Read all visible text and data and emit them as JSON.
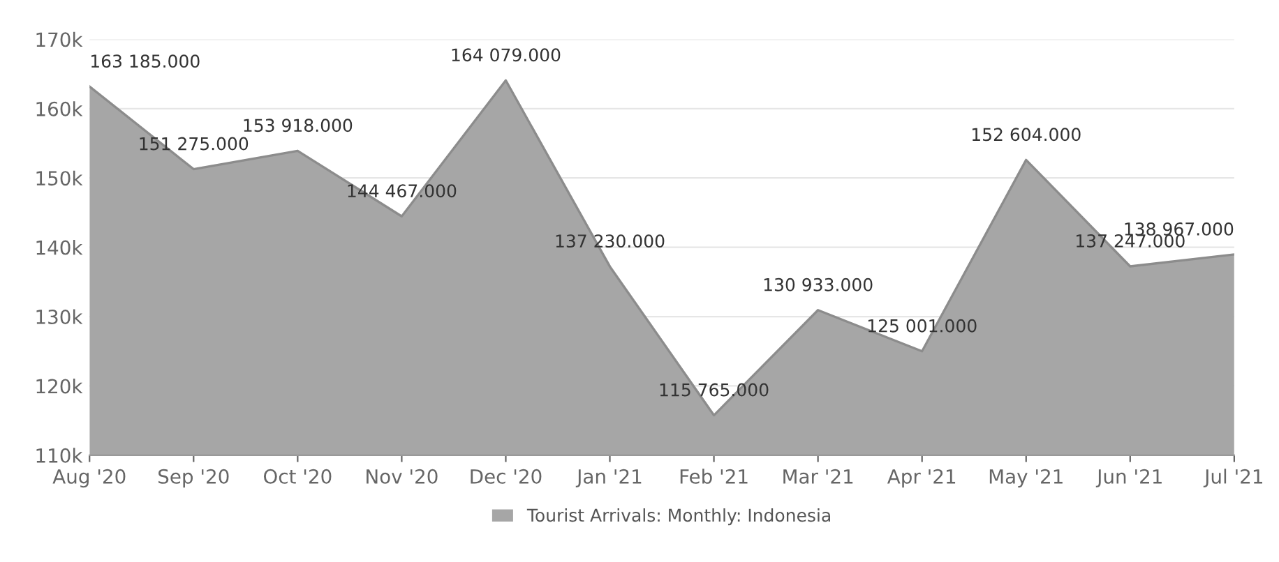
{
  "chart_data": {
    "type": "area",
    "categories": [
      "Aug '20",
      "Sep '20",
      "Oct '20",
      "Nov '20",
      "Dec '20",
      "Jan '21",
      "Feb '21",
      "Mar '21",
      "Apr '21",
      "May '21",
      "Jun '21",
      "Jul '21"
    ],
    "series": [
      {
        "name": "Tourist Arrivals: Monthly: Indonesia",
        "color": "#a6a6a6",
        "values": [
          163185,
          151275,
          153918,
          144467,
          164079,
          137230,
          115765,
          130933,
          125001,
          152604,
          137247,
          138967
        ],
        "value_labels": [
          "163 185.000",
          "151 275.000",
          "153 918.000",
          "144 467.000",
          "164 079.000",
          "137 230.000",
          "115 765.000",
          "130 933.000",
          "125 001.000",
          "152 604.000",
          "137 247.000",
          "138 967.000"
        ]
      }
    ],
    "ylim": [
      110000,
      170000
    ],
    "yticks": [
      {
        "value": 110000,
        "label": "110k"
      },
      {
        "value": 120000,
        "label": "120k"
      },
      {
        "value": 130000,
        "label": "130k"
      },
      {
        "value": 140000,
        "label": "140k"
      },
      {
        "value": 150000,
        "label": "150k"
      },
      {
        "value": 160000,
        "label": "160k"
      },
      {
        "value": 170000,
        "label": "170k"
      }
    ],
    "grid": "y",
    "legend": "bottom"
  }
}
